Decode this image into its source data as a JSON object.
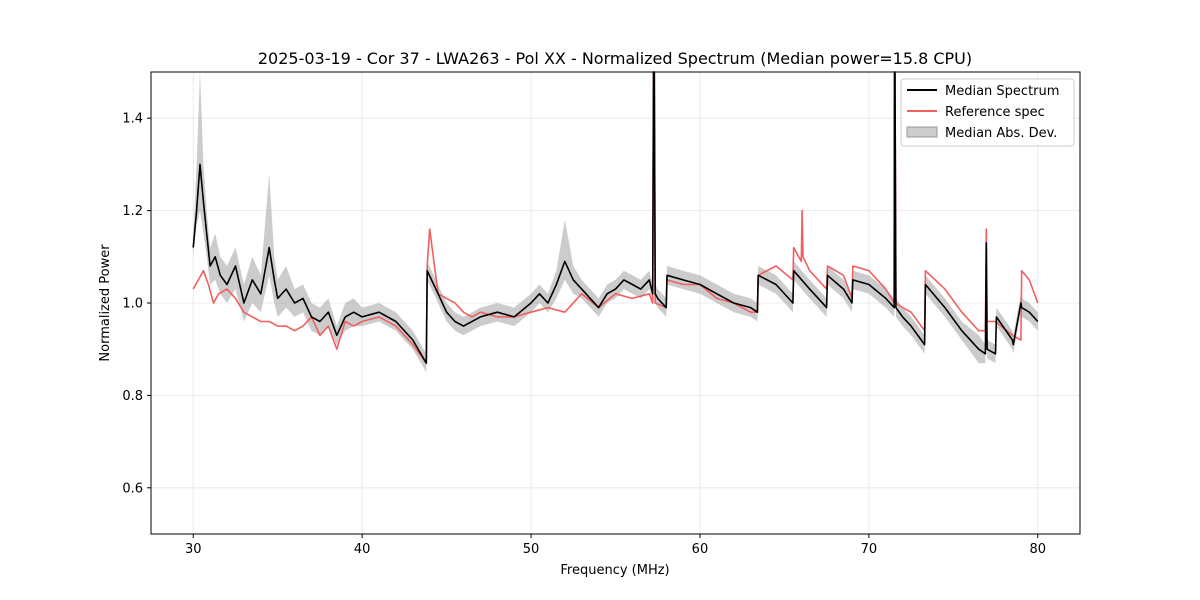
{
  "chart_data": {
    "type": "line",
    "title": "2025-03-19 - Cor 37 - LWA263 - Pol XX - Normalized Spectrum (Median power=15.8 CPU)",
    "xlabel": "Frequency (MHz)",
    "ylabel": "Normalized Power",
    "xlim": [
      27.5,
      82.5
    ],
    "ylim": [
      0.5,
      1.5
    ],
    "xticks": [
      30,
      40,
      50,
      60,
      70,
      80
    ],
    "yticks": [
      0.6,
      0.8,
      1.0,
      1.2,
      1.4
    ],
    "grid": true,
    "legend_position": "top-right",
    "legend": [
      "Median Spectrum",
      "Reference spec",
      "Median Abs. Dev."
    ],
    "series": [
      {
        "name": "Median Spectrum",
        "color": "#000000",
        "x": [
          30.0,
          30.2,
          30.4,
          30.6,
          30.8,
          31.0,
          31.3,
          31.6,
          32.0,
          32.5,
          33.0,
          33.5,
          34.0,
          34.5,
          34.8,
          35.0,
          35.5,
          36.0,
          36.5,
          37.0,
          37.5,
          38.0,
          38.5,
          39.0,
          39.5,
          40.0,
          41.0,
          42.0,
          43.0,
          43.8,
          43.85,
          44.5,
          45.0,
          45.5,
          46.0,
          47.0,
          48.0,
          49.0,
          50.0,
          50.5,
          51.0,
          51.5,
          52.0,
          52.5,
          53.0,
          53.5,
          54.0,
          54.5,
          55.0,
          55.5,
          56.0,
          56.5,
          57.0,
          57.2,
          57.25,
          57.3,
          57.35,
          57.5,
          58.0,
          58.05,
          59.0,
          60.0,
          61.0,
          62.0,
          63.0,
          63.4,
          63.45,
          64.5,
          65.5,
          65.55,
          66.5,
          67.5,
          67.55,
          68.5,
          69.0,
          69.05,
          70.0,
          71.0,
          71.5,
          71.52,
          71.55,
          71.6,
          72.0,
          72.5,
          73.3,
          73.35,
          74.5,
          75.5,
          76.5,
          76.9,
          76.95,
          77.0,
          77.5,
          77.55,
          78.5,
          78.55,
          79.0,
          79.05,
          79.5,
          80.0
        ],
        "y": [
          1.12,
          1.2,
          1.3,
          1.22,
          1.15,
          1.08,
          1.1,
          1.06,
          1.04,
          1.08,
          1.0,
          1.05,
          1.02,
          1.12,
          1.05,
          1.01,
          1.03,
          1.0,
          1.01,
          0.97,
          0.96,
          0.98,
          0.93,
          0.97,
          0.98,
          0.97,
          0.98,
          0.96,
          0.92,
          0.87,
          1.07,
          1.02,
          0.98,
          0.96,
          0.95,
          0.97,
          0.98,
          0.97,
          1.0,
          1.02,
          1.0,
          1.04,
          1.09,
          1.05,
          1.03,
          1.01,
          0.99,
          1.02,
          1.03,
          1.05,
          1.04,
          1.03,
          1.05,
          1.02,
          1.5,
          1.5,
          1.02,
          1.01,
          0.99,
          1.06,
          1.05,
          1.04,
          1.02,
          1.0,
          0.99,
          0.98,
          1.06,
          1.04,
          1.0,
          1.07,
          1.03,
          0.99,
          1.06,
          1.03,
          1.0,
          1.05,
          1.04,
          1.01,
          0.99,
          1.5,
          1.5,
          0.99,
          0.97,
          0.95,
          0.91,
          1.04,
          0.99,
          0.94,
          0.9,
          0.89,
          1.13,
          0.9,
          0.89,
          0.97,
          0.92,
          0.91,
          1.0,
          0.99,
          0.98,
          0.96
        ]
      },
      {
        "name": "Reference spec",
        "color": "#f06060",
        "x": [
          30.0,
          30.3,
          30.6,
          30.9,
          31.2,
          31.5,
          32.0,
          32.5,
          33.0,
          33.5,
          34.0,
          34.5,
          35.0,
          35.5,
          36.0,
          36.5,
          37.0,
          37.5,
          38.0,
          38.5,
          39.0,
          39.5,
          40.0,
          41.0,
          42.0,
          43.0,
          43.8,
          43.85,
          44.0,
          44.5,
          45.0,
          45.5,
          46.0,
          46.5,
          47.0,
          48.0,
          49.0,
          50.0,
          51.0,
          52.0,
          53.0,
          54.0,
          55.0,
          56.0,
          57.0,
          57.2,
          57.25,
          57.3,
          57.35,
          58.0,
          58.05,
          59.0,
          60.0,
          61.0,
          62.0,
          63.0,
          63.4,
          63.45,
          64.5,
          65.5,
          65.55,
          66.0,
          66.05,
          66.1,
          66.5,
          67.5,
          67.55,
          68.5,
          69.0,
          69.05,
          70.0,
          71.0,
          71.5,
          71.52,
          71.55,
          71.6,
          72.0,
          72.5,
          73.3,
          73.35,
          74.5,
          75.5,
          76.5,
          76.9,
          76.95,
          77.0,
          77.5,
          78.5,
          79.0,
          79.05,
          79.5,
          80.0
        ],
        "y": [
          1.03,
          1.05,
          1.07,
          1.04,
          1.0,
          1.02,
          1.03,
          1.01,
          0.98,
          0.97,
          0.96,
          0.96,
          0.95,
          0.95,
          0.94,
          0.95,
          0.97,
          0.93,
          0.95,
          0.9,
          0.96,
          0.95,
          0.96,
          0.97,
          0.95,
          0.91,
          0.87,
          1.08,
          1.16,
          1.02,
          1.01,
          1.0,
          0.98,
          0.97,
          0.98,
          0.97,
          0.97,
          0.98,
          0.99,
          0.98,
          1.02,
          0.99,
          1.02,
          1.01,
          1.02,
          1.0,
          1.5,
          1.5,
          1.0,
          0.99,
          1.05,
          1.04,
          1.04,
          1.01,
          1.0,
          0.98,
          0.98,
          1.06,
          1.08,
          1.05,
          1.12,
          1.09,
          1.2,
          1.1,
          1.07,
          1.03,
          1.08,
          1.06,
          1.01,
          1.08,
          1.07,
          1.03,
          1.0,
          1.5,
          1.5,
          1.0,
          0.99,
          0.98,
          0.94,
          1.07,
          1.03,
          0.98,
          0.94,
          0.94,
          1.16,
          0.96,
          0.96,
          0.93,
          0.92,
          1.07,
          1.05,
          1.0
        ]
      },
      {
        "name": "Median Abs. Dev.",
        "color": "#999999",
        "x": [
          30.0,
          30.2,
          30.4,
          30.6,
          30.8,
          31.0,
          31.3,
          31.6,
          32.0,
          32.5,
          33.0,
          33.5,
          34.0,
          34.5,
          34.8,
          35.0,
          35.5,
          36.0,
          36.5,
          37.0,
          37.5,
          38.0,
          38.5,
          39.0,
          39.5,
          40.0,
          41.0,
          42.0,
          43.0,
          43.8,
          43.85,
          44.5,
          45.0,
          45.5,
          46.0,
          47.0,
          48.0,
          49.0,
          50.0,
          50.5,
          51.0,
          51.5,
          52.0,
          52.5,
          53.0,
          53.5,
          54.0,
          54.5,
          55.0,
          55.5,
          56.0,
          56.5,
          57.0,
          57.2,
          57.25,
          57.3,
          57.35,
          57.5,
          58.0,
          58.05,
          59.0,
          60.0,
          61.0,
          62.0,
          63.0,
          63.4,
          63.45,
          64.5,
          65.5,
          65.55,
          66.5,
          67.5,
          67.55,
          68.5,
          69.0,
          69.05,
          70.0,
          71.0,
          71.5,
          71.52,
          71.55,
          71.6,
          72.0,
          72.5,
          73.3,
          73.35,
          74.5,
          75.5,
          76.5,
          76.9,
          76.95,
          77.0,
          77.5,
          77.55,
          78.5,
          78.55,
          79.0,
          79.05,
          79.5,
          80.0
        ],
        "lower": [
          1.1,
          1.17,
          1.2,
          1.15,
          1.1,
          1.04,
          1.05,
          1.02,
          1.0,
          1.03,
          0.96,
          1.0,
          0.98,
          1.06,
          1.0,
          0.97,
          0.99,
          0.97,
          0.98,
          0.94,
          0.93,
          0.95,
          0.91,
          0.94,
          0.95,
          0.95,
          0.96,
          0.94,
          0.9,
          0.85,
          1.05,
          1.0,
          0.96,
          0.94,
          0.93,
          0.95,
          0.96,
          0.95,
          0.98,
          1.0,
          0.98,
          1.01,
          1.05,
          1.02,
          1.01,
          0.99,
          0.97,
          1.0,
          1.01,
          1.03,
          1.02,
          1.01,
          1.03,
          1.0,
          1.5,
          1.5,
          1.0,
          0.99,
          0.97,
          1.04,
          1.03,
          1.02,
          1.0,
          0.98,
          0.97,
          0.96,
          1.04,
          1.02,
          0.98,
          1.05,
          1.01,
          0.97,
          1.04,
          1.01,
          0.98,
          1.03,
          1.02,
          0.99,
          0.97,
          1.5,
          1.5,
          0.97,
          0.95,
          0.93,
          0.89,
          1.02,
          0.97,
          0.92,
          0.87,
          0.87,
          1.1,
          0.88,
          0.87,
          0.95,
          0.9,
          0.89,
          0.98,
          0.97,
          0.96,
          0.94
        ],
        "upper": [
          1.14,
          1.3,
          1.5,
          1.3,
          1.2,
          1.12,
          1.15,
          1.1,
          1.08,
          1.12,
          1.04,
          1.1,
          1.06,
          1.28,
          1.1,
          1.05,
          1.08,
          1.03,
          1.04,
          1.0,
          0.99,
          1.01,
          0.95,
          1.0,
          1.01,
          0.99,
          1.0,
          0.98,
          0.94,
          0.89,
          1.09,
          1.04,
          1.0,
          0.98,
          0.97,
          0.99,
          1.0,
          0.99,
          1.02,
          1.04,
          1.02,
          1.07,
          1.18,
          1.08,
          1.05,
          1.03,
          1.01,
          1.04,
          1.05,
          1.07,
          1.06,
          1.05,
          1.07,
          1.04,
          1.5,
          1.5,
          1.04,
          1.03,
          1.01,
          1.08,
          1.07,
          1.06,
          1.04,
          1.02,
          1.01,
          1.0,
          1.08,
          1.06,
          1.02,
          1.09,
          1.05,
          1.01,
          1.08,
          1.05,
          1.02,
          1.07,
          1.06,
          1.03,
          1.01,
          1.5,
          1.5,
          1.01,
          0.99,
          0.97,
          0.93,
          1.06,
          1.01,
          0.96,
          0.93,
          0.91,
          1.17,
          0.92,
          0.91,
          0.99,
          0.94,
          0.93,
          1.02,
          1.01,
          1.0,
          0.98
        ]
      }
    ]
  }
}
